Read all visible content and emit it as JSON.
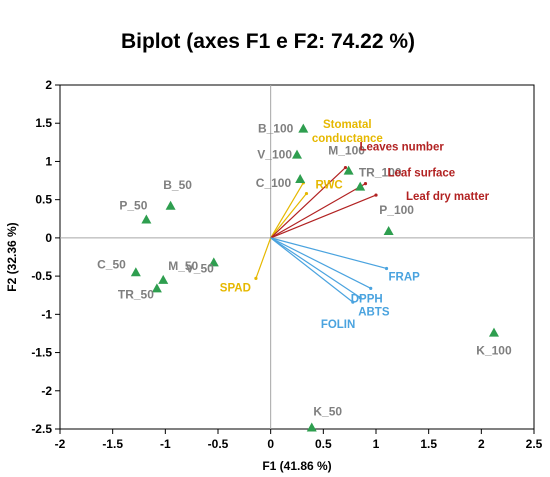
{
  "chart_data": {
    "type": "scatter",
    "title": "Biplot (axes F1 e F2: 74.22 %)",
    "xlabel": "F1 (41.86 %)",
    "ylabel": "F2 (32.36 %)",
    "xlim": [
      -2,
      2.5
    ],
    "ylim": [
      -2.5,
      2
    ],
    "x_ticks": [
      -2,
      -1.5,
      -1,
      -0.5,
      0,
      0.5,
      1,
      1.5,
      2,
      2.5
    ],
    "y_ticks": [
      -2.5,
      -2,
      -1.5,
      -1,
      -0.5,
      0,
      0.5,
      1,
      1.5,
      2
    ],
    "x_tick_labels": [
      "-2",
      "-1.5",
      "-1",
      "-0.5",
      "0",
      "0.5",
      "1",
      "1.5",
      "2",
      "2.5"
    ],
    "y_tick_labels": [
      "-2.5",
      "-2",
      "-1.5",
      "-1",
      "-0.5",
      "0",
      "0.5",
      "1",
      "1.5",
      "2"
    ],
    "grid": false,
    "observations": [
      {
        "label": "B_100",
        "x": 0.31,
        "y": 1.43
      },
      {
        "label": "V_100",
        "x": 0.25,
        "y": 1.09
      },
      {
        "label": "C_100",
        "x": 0.28,
        "y": 0.77
      },
      {
        "label": "M_100",
        "x": 0.74,
        "y": 0.88
      },
      {
        "label": "TR_100",
        "x": 0.85,
        "y": 0.67
      },
      {
        "label": "P_100",
        "x": 1.12,
        "y": 0.09
      },
      {
        "label": "B_50",
        "x": -0.95,
        "y": 0.42
      },
      {
        "label": "P_50",
        "x": -1.18,
        "y": 0.24
      },
      {
        "label": "V_50",
        "x": -0.54,
        "y": -0.32
      },
      {
        "label": "C_50",
        "x": -1.28,
        "y": -0.45
      },
      {
        "label": "M_50",
        "x": -1.02,
        "y": -0.55
      },
      {
        "label": "TR_50",
        "x": -1.08,
        "y": -0.66
      },
      {
        "label": "K_100",
        "x": 2.12,
        "y": -1.24
      },
      {
        "label": "K_50",
        "x": 0.39,
        "y": -2.48
      }
    ],
    "variables": [
      {
        "label": "Stomatal conductance",
        "group": "yellow",
        "x": 0.31,
        "y": 0.72
      },
      {
        "label": "RWC",
        "group": "yellow",
        "x": 0.34,
        "y": 0.58
      },
      {
        "label": "SPAD",
        "group": "yellow",
        "x": -0.14,
        "y": -0.53
      },
      {
        "label": "Leaves number",
        "group": "red",
        "x": 0.71,
        "y": 0.92
      },
      {
        "label": "Leaf surface",
        "group": "red",
        "x": 0.9,
        "y": 0.71
      },
      {
        "label": "Leaf dry matter",
        "group": "red",
        "x": 1.0,
        "y": 0.56
      },
      {
        "label": "FRAP",
        "group": "blue",
        "x": 1.1,
        "y": -0.4
      },
      {
        "label": "DPPH",
        "group": "blue",
        "x": 0.95,
        "y": -0.66
      },
      {
        "label": "ABTS",
        "group": "blue",
        "x": 0.85,
        "y": -0.78
      },
      {
        "label": "FOLIN",
        "group": "blue",
        "x": 0.78,
        "y": -0.84
      }
    ],
    "colors": {
      "observation_marker": "#2e9e4f",
      "observation_label": "#7f7f7f",
      "yellow": "#e6b800",
      "red": "#b22222",
      "blue": "#4aa3df",
      "axes": "#000000",
      "zero_lines": "#a6a6a6"
    }
  }
}
